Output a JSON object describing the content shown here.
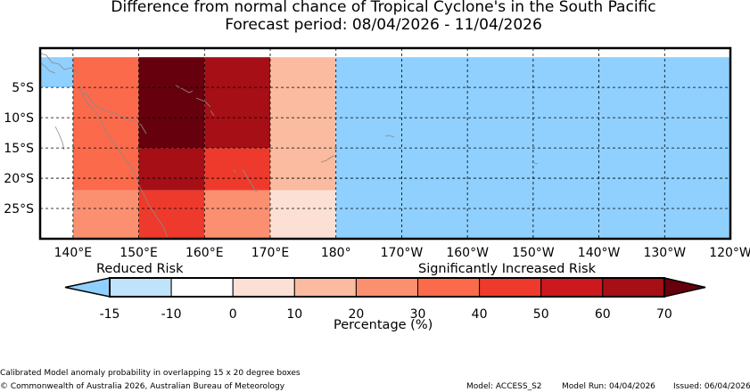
{
  "title": "Difference from normal chance of Tropical Cyclone's in the South Pacific",
  "subtitle": "Forecast period: 08/04/2026 - 11/04/2026",
  "map": {
    "lat_labels": [
      "5°S",
      "10°S",
      "15°S",
      "20°S",
      "25°S"
    ],
    "lon_labels": [
      "140°E",
      "150°E",
      "160°E",
      "170°E",
      "180°",
      "170°W",
      "160°W",
      "150°W",
      "140°W",
      "130°W",
      "120°W"
    ],
    "cells": [
      {
        "lon": [
          135,
          140
        ],
        "lat": [
          0,
          -5
        ],
        "value": -15
      },
      {
        "lon": [
          135,
          140
        ],
        "lat": [
          -5,
          -30
        ],
        "value": -10
      },
      {
        "lon": [
          140,
          150
        ],
        "lat": [
          0,
          -22
        ],
        "value": 30
      },
      {
        "lon": [
          140,
          150
        ],
        "lat": [
          -22,
          -30
        ],
        "value": 20
      },
      {
        "lon": [
          150,
          160
        ],
        "lat": [
          0,
          -15
        ],
        "value": 70
      },
      {
        "lon": [
          150,
          160
        ],
        "lat": [
          -15,
          -22
        ],
        "value": 60
      },
      {
        "lon": [
          150,
          160
        ],
        "lat": [
          -22,
          -30
        ],
        "value": 40
      },
      {
        "lon": [
          160,
          170
        ],
        "lat": [
          0,
          -15
        ],
        "value": 60
      },
      {
        "lon": [
          160,
          170
        ],
        "lat": [
          -15,
          -22
        ],
        "value": 40
      },
      {
        "lon": [
          160,
          170
        ],
        "lat": [
          -22,
          -30
        ],
        "value": 20
      },
      {
        "lon": [
          170,
          180
        ],
        "lat": [
          0,
          -22
        ],
        "value": 10
      },
      {
        "lon": [
          170,
          180
        ],
        "lat": [
          -22,
          -30
        ],
        "value": 0
      },
      {
        "lon": [
          180,
          240
        ],
        "lat": [
          0,
          -30
        ],
        "value": -15
      }
    ]
  },
  "legend": {
    "reduced_label": "Reduced Risk",
    "increased_label": "Significantly Increased Risk",
    "ticks": [
      "-15",
      "-10",
      "0",
      "10",
      "20",
      "30",
      "40",
      "50",
      "60",
      "70"
    ],
    "colors": [
      "#8fd0ff",
      "#bfe3f8",
      "#ffffff",
      "#fde0d5",
      "#fbbba0",
      "#fa9070",
      "#fb6a4b",
      "#ee3a2c",
      "#cb191d",
      "#a50f15",
      "#67000d"
    ],
    "xlabel": "Percentage (%)"
  },
  "footer": {
    "note": "Calibrated Model anomaly probability in overlapping 15 x 20 degree boxes",
    "copyright": "© Commonwealth of Australia 2026, Australian Bureau of Meteorology",
    "model": "Model: ACCESS_S2",
    "model_run": "Model Run: 04/04/2026",
    "issued": "Issued: 06/04/2026"
  }
}
